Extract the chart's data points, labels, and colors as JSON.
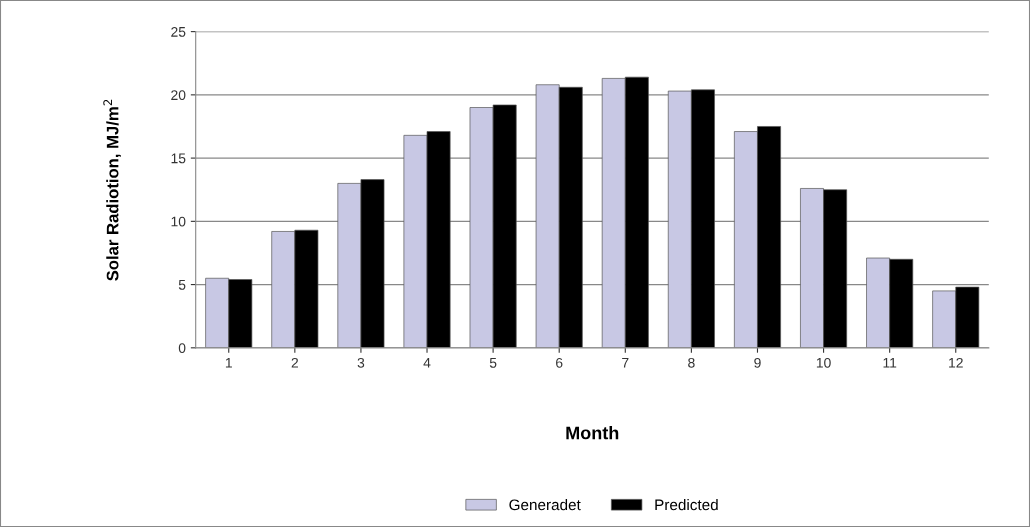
{
  "chart_data": {
    "type": "bar",
    "xlabel": "Month",
    "ylabel": "Solar Radiotion, MJ/m$^{2}$",
    "categories": [
      "1",
      "2",
      "3",
      "4",
      "5",
      "6",
      "7",
      "8",
      "9",
      "10",
      "11",
      "12"
    ],
    "series": [
      {
        "name": "Generadet",
        "color": "#c8c8e4",
        "values": [
          5.5,
          9.2,
          13.0,
          16.8,
          19.0,
          20.8,
          21.3,
          20.3,
          17.1,
          12.6,
          7.1,
          4.5
        ]
      },
      {
        "name": "Predicted",
        "color": "#000000",
        "values": [
          5.4,
          9.3,
          13.3,
          17.1,
          19.2,
          20.6,
          21.4,
          20.4,
          17.5,
          12.5,
          7.0,
          4.8
        ]
      }
    ],
    "ylim": [
      0,
      25
    ],
    "yticks": [
      0,
      5,
      10,
      15,
      20,
      25
    ],
    "grid": "y",
    "legend": "bottom"
  }
}
